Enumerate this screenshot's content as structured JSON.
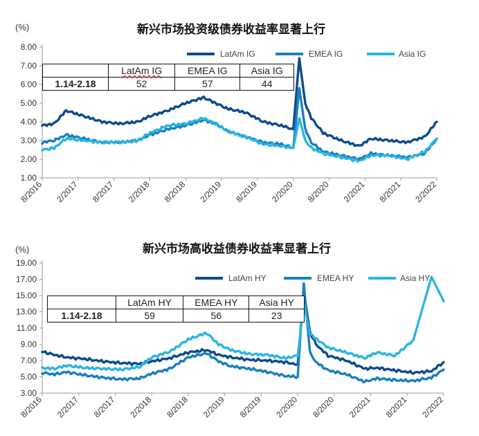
{
  "colors": {
    "latam": "#0d4a8c",
    "emea": "#1a7fc0",
    "asia": "#2ab5e0",
    "axis": "#999999",
    "grid": "#e6e6e6"
  },
  "chart_data": [
    {
      "type": "line",
      "unit_label": "(%)",
      "title": "新兴市场投资级债券收益率显著上行",
      "ylim": [
        1.0,
        8.0
      ],
      "ytick_labels": [
        "1.00",
        "2.00",
        "3.00",
        "4.00",
        "5.00",
        "6.00",
        "7.00",
        "8.00"
      ],
      "xtick_labels": [
        "8/2016",
        "2/2017",
        "8/2017",
        "2/2018",
        "8/2018",
        "2/2019",
        "8/2019",
        "2/2020",
        "8/2020",
        "2/2021",
        "8/2021",
        "2/2022"
      ],
      "x_range": [
        "2016-08",
        "2022-02"
      ],
      "grid": false,
      "legend_position": "top-right",
      "series": [
        {
          "name": "LatAm IG",
          "color_key": "latam",
          "x": [
            "2016-08",
            "2016-10",
            "2016-12",
            "2017-03",
            "2017-06",
            "2017-09",
            "2017-12",
            "2018-02",
            "2018-05",
            "2018-08",
            "2018-11",
            "2019-01",
            "2019-03",
            "2019-06",
            "2019-09",
            "2019-12",
            "2020-02",
            "2020-03",
            "2020-04",
            "2020-05",
            "2020-07",
            "2020-10",
            "2021-01",
            "2021-03",
            "2021-06",
            "2021-09",
            "2021-12",
            "2022-02"
          ],
          "values": [
            3.8,
            3.9,
            4.6,
            4.3,
            4.0,
            3.9,
            4.0,
            4.3,
            4.6,
            5.0,
            5.3,
            5.0,
            4.7,
            4.5,
            4.0,
            3.8,
            3.6,
            7.4,
            5.0,
            4.2,
            3.4,
            3.0,
            2.7,
            3.1,
            3.0,
            2.9,
            3.2,
            4.0
          ]
        },
        {
          "name": "EMEA IG",
          "color_key": "emea",
          "x": [
            "2016-08",
            "2016-10",
            "2016-12",
            "2017-03",
            "2017-06",
            "2017-09",
            "2017-12",
            "2018-02",
            "2018-05",
            "2018-08",
            "2018-11",
            "2019-01",
            "2019-03",
            "2019-06",
            "2019-09",
            "2019-12",
            "2020-02",
            "2020-03",
            "2020-04",
            "2020-05",
            "2020-07",
            "2020-10",
            "2021-01",
            "2021-03",
            "2021-06",
            "2021-09",
            "2021-12",
            "2022-02"
          ],
          "values": [
            2.9,
            3.0,
            3.3,
            3.1,
            2.9,
            2.9,
            3.0,
            3.3,
            3.6,
            3.8,
            4.1,
            3.9,
            3.5,
            3.2,
            2.9,
            2.8,
            2.6,
            5.8,
            3.6,
            2.9,
            2.4,
            2.2,
            2.0,
            2.3,
            2.2,
            2.1,
            2.3,
            3.1
          ]
        },
        {
          "name": "Asia IG",
          "color_key": "asia",
          "x": [
            "2016-08",
            "2016-10",
            "2016-12",
            "2017-03",
            "2017-06",
            "2017-09",
            "2017-12",
            "2018-02",
            "2018-05",
            "2018-08",
            "2018-11",
            "2019-01",
            "2019-03",
            "2019-06",
            "2019-09",
            "2019-12",
            "2020-02",
            "2020-03",
            "2020-04",
            "2020-05",
            "2020-07",
            "2020-10",
            "2021-01",
            "2021-03",
            "2021-06",
            "2021-09",
            "2021-12",
            "2022-02"
          ],
          "values": [
            2.5,
            2.6,
            3.1,
            3.0,
            2.9,
            2.9,
            3.0,
            3.4,
            3.8,
            3.9,
            4.2,
            3.9,
            3.5,
            3.2,
            2.8,
            2.7,
            2.6,
            4.2,
            3.0,
            2.6,
            2.3,
            2.1,
            1.9,
            2.2,
            2.2,
            2.0,
            2.4,
            3.1
          ]
        }
      ],
      "table": {
        "headers": [
          "",
          "LatAm IG",
          "EMEA IG",
          "Asia IG"
        ],
        "row": [
          "1.14-2.18",
          "52",
          "57",
          "44"
        ]
      }
    },
    {
      "type": "line",
      "unit_label": "(%)",
      "title": "新兴市场高收益债券收益率显著上行",
      "ylim": [
        3.0,
        19.0
      ],
      "ytick_labels": [
        "3.00",
        "5.00",
        "7.00",
        "9.00",
        "11.00",
        "13.00",
        "15.00",
        "17.00",
        "19.00"
      ],
      "xtick_labels": [
        "8/2016",
        "2/2017",
        "8/2017",
        "2/2018",
        "8/2018",
        "2/2019",
        "8/2019",
        "2/2020",
        "8/2020",
        "2/2021",
        "8/2021",
        "2/2022"
      ],
      "x_range": [
        "2016-08",
        "2022-02"
      ],
      "grid": false,
      "legend_position": "top-right",
      "series": [
        {
          "name": "LatAm HY",
          "color_key": "latam",
          "x": [
            "2016-08",
            "2016-10",
            "2016-12",
            "2017-03",
            "2017-06",
            "2017-09",
            "2017-12",
            "2018-02",
            "2018-05",
            "2018-08",
            "2018-11",
            "2019-01",
            "2019-03",
            "2019-06",
            "2019-09",
            "2019-12",
            "2020-02",
            "2020-03",
            "2020-04",
            "2020-05",
            "2020-07",
            "2020-10",
            "2021-01",
            "2021-03",
            "2021-06",
            "2021-09",
            "2021-12",
            "2022-02"
          ],
          "values": [
            8.1,
            7.7,
            7.4,
            7.2,
            6.9,
            6.7,
            6.6,
            6.9,
            7.3,
            8.0,
            8.3,
            7.7,
            7.4,
            7.1,
            7.0,
            6.8,
            6.5,
            15.5,
            10.5,
            9.0,
            7.6,
            7.0,
            6.0,
            6.1,
            5.8,
            5.5,
            5.7,
            6.8
          ]
        },
        {
          "name": "EMEA HY",
          "color_key": "emea",
          "x": [
            "2016-08",
            "2016-10",
            "2016-12",
            "2017-03",
            "2017-06",
            "2017-09",
            "2017-12",
            "2018-02",
            "2018-05",
            "2018-08",
            "2018-11",
            "2019-01",
            "2019-03",
            "2019-06",
            "2019-09",
            "2019-12",
            "2020-02",
            "2020-03",
            "2020-04",
            "2020-05",
            "2020-07",
            "2020-10",
            "2021-01",
            "2021-03",
            "2021-06",
            "2021-09",
            "2021-12",
            "2022-02"
          ],
          "values": [
            5.5,
            5.3,
            5.6,
            5.2,
            4.9,
            4.7,
            4.8,
            5.4,
            6.0,
            7.4,
            7.9,
            6.9,
            6.3,
            6.0,
            5.6,
            5.1,
            5.0,
            16.5,
            8.0,
            6.8,
            5.8,
            5.3,
            4.4,
            4.8,
            4.6,
            4.5,
            4.9,
            5.9
          ]
        },
        {
          "name": "Asia HY",
          "color_key": "asia",
          "x": [
            "2016-08",
            "2016-10",
            "2016-12",
            "2017-03",
            "2017-06",
            "2017-09",
            "2017-12",
            "2018-02",
            "2018-05",
            "2018-08",
            "2018-11",
            "2019-01",
            "2019-03",
            "2019-06",
            "2019-09",
            "2019-12",
            "2020-02",
            "2020-03",
            "2020-04",
            "2020-05",
            "2020-07",
            "2020-10",
            "2021-01",
            "2021-03",
            "2021-06",
            "2021-09",
            "2021-12",
            "2022-02"
          ],
          "values": [
            6.1,
            6.0,
            6.4,
            6.1,
            6.0,
            5.9,
            6.2,
            7.4,
            8.1,
            9.6,
            10.4,
            9.0,
            8.3,
            7.8,
            7.7,
            7.3,
            7.6,
            14.0,
            10.3,
            9.7,
            8.6,
            8.0,
            7.3,
            8.0,
            7.6,
            9.5,
            17.3,
            14.3
          ]
        }
      ],
      "table": {
        "headers": [
          "",
          "LatAm HY",
          "EMEA HY",
          "Asia HY"
        ],
        "row": [
          "1.14-2.18",
          "59",
          "56",
          "23"
        ]
      }
    }
  ]
}
